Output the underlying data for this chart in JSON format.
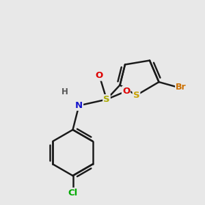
{
  "bg_color": "#e8e8e8",
  "bond_color": "#1a1a1a",
  "bond_width": 1.8,
  "S_thiophene_color": "#c8a000",
  "S_sulfonyl_color": "#aaaa00",
  "N_color": "#1515cc",
  "H_color": "#555555",
  "O_color": "#dd0000",
  "Br_color": "#cc7000",
  "Cl_color": "#00aa00",
  "xlim": [
    0,
    10
  ],
  "ylim": [
    0,
    10
  ]
}
